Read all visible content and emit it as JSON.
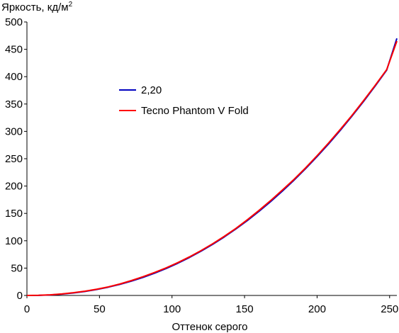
{
  "chart_data": {
    "type": "line",
    "title": "",
    "ylabel": "Яркость, кд/м",
    "ylabel_sup": "2",
    "xlabel": "Оттенок серого",
    "xlim": [
      0,
      255
    ],
    "ylim": [
      0,
      500
    ],
    "x_ticks": [
      0,
      50,
      100,
      150,
      200,
      250
    ],
    "y_ticks": [
      0,
      50,
      100,
      150,
      200,
      250,
      300,
      350,
      400,
      450,
      500
    ],
    "grid": false,
    "legend": "upper-left-inside",
    "series": [
      {
        "name": "2,20",
        "color": "#0000c0",
        "x": [
          0,
          8,
          16,
          24,
          32,
          40,
          48,
          56,
          64,
          72,
          80,
          88,
          96,
          104,
          112,
          120,
          128,
          136,
          144,
          152,
          160,
          168,
          176,
          184,
          192,
          200,
          208,
          216,
          224,
          232,
          240,
          248,
          255
        ],
        "y": [
          0,
          0.2,
          1.0,
          2.4,
          4.5,
          7.3,
          10.8,
          15.1,
          20.2,
          26.2,
          33.0,
          40.7,
          49.3,
          58.9,
          69.4,
          80.9,
          93.4,
          106.9,
          121.5,
          137.1,
          153.8,
          171.6,
          190.5,
          210.5,
          231.6,
          253.9,
          277.3,
          301.9,
          327.7,
          354.6,
          382.8,
          412.1,
          470
        ]
      },
      {
        "name": "Tecno Phantom V Fold",
        "color": "#ff0000",
        "x": [
          0,
          8,
          16,
          24,
          32,
          40,
          48,
          56,
          64,
          72,
          80,
          88,
          96,
          104,
          112,
          120,
          128,
          136,
          144,
          152,
          160,
          168,
          176,
          184,
          192,
          200,
          208,
          216,
          224,
          232,
          240,
          248,
          255
        ],
        "y": [
          0,
          0.3,
          1.2,
          2.7,
          5.0,
          7.8,
          11.3,
          15.6,
          20.9,
          27.2,
          34.2,
          42.0,
          50.5,
          60.0,
          70.5,
          82.0,
          94.5,
          108.0,
          122.5,
          138.5,
          155.5,
          173.5,
          192.5,
          212.0,
          233.0,
          255.5,
          279.0,
          303.5,
          329.0,
          356.0,
          384.0,
          413.0,
          465
        ]
      }
    ]
  }
}
